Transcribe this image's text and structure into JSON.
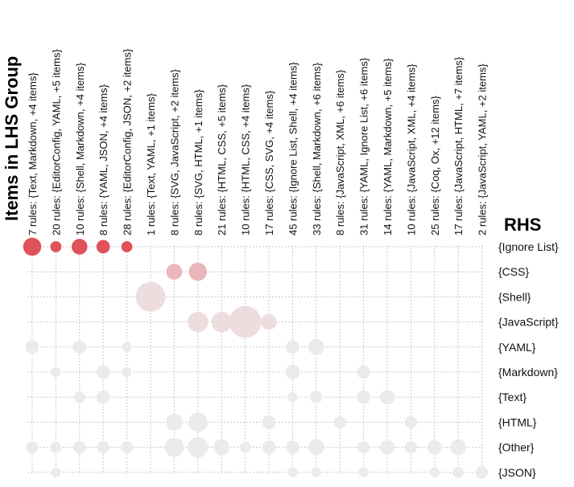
{
  "chart_data": {
    "type": "scatter",
    "title": "",
    "xlabel": "Items in LHS Group",
    "ylabel": "RHS",
    "columns": [
      "7 rules: {Text, Markdown, +4 items}",
      "20 rules: {EditorConfig, YAML, +5 items}",
      "10 rules: {Shell, Markdown, +4 items}",
      "8 rules: {YAML, JSON, +4 items}",
      "28 rules: {EditorConfig, JSON, +2 items}",
      "1 rules: {Text, YAML, +1 items}",
      "8 rules: {SVG, JavaScript, +2 items}",
      "8 rules: {SVG, HTML, +1 items}",
      "21 rules: {HTML, CSS, +5 items}",
      "10 rules: {HTML, CSS, +4 items}",
      "17 rules: {CSS, SVG, +4 items}",
      "45 rules: {Ignore List, Shell, +4 items}",
      "33 rules: {Shell, Markdown, +6 items}",
      "8 rules: {JavaScript, XML, +6 items}",
      "31 rules: {YAML, Ignore List, +6 items}",
      "14 rules: {YAML, Markdown, +5 items}",
      "10 rules: {JavaScript, XML, +4 items}",
      "25 rules: {Coq, Ox, +12 items}",
      "17 rules: {JavaScript, HTML, +7 items}",
      "2 rules: {JavaScript, YAML, +2 items}"
    ],
    "rows": [
      "{Ignore List}",
      "{CSS}",
      "{Shell}",
      "{JavaScript}",
      "{YAML}",
      "{Markdown}",
      "{Text}",
      "{HTML}",
      "{Other}",
      "{JSON}"
    ],
    "colors": {
      "strong": "#e05158",
      "medium": "#eab6b9",
      "light": "#eddddf",
      "faint": "#ebebeb"
    },
    "points": [
      {
        "col": 0,
        "row": 0,
        "size": 5,
        "shade": "strong"
      },
      {
        "col": 1,
        "row": 0,
        "size": 2,
        "shade": "strong"
      },
      {
        "col": 2,
        "row": 0,
        "size": 4,
        "shade": "strong"
      },
      {
        "col": 3,
        "row": 0,
        "size": 3,
        "shade": "strong"
      },
      {
        "col": 4,
        "row": 0,
        "size": 2,
        "shade": "strong"
      },
      {
        "col": 6,
        "row": 1,
        "size": 4,
        "shade": "medium"
      },
      {
        "col": 7,
        "row": 1,
        "size": 5,
        "shade": "medium"
      },
      {
        "col": 5,
        "row": 2,
        "size": 10,
        "shade": "light"
      },
      {
        "col": 7,
        "row": 3,
        "size": 6,
        "shade": "light"
      },
      {
        "col": 8,
        "row": 3,
        "size": 6,
        "shade": "light"
      },
      {
        "col": 9,
        "row": 3,
        "size": 11,
        "shade": "light"
      },
      {
        "col": 10,
        "row": 3,
        "size": 4,
        "shade": "light"
      },
      {
        "col": 0,
        "row": 4,
        "size": 3,
        "shade": "faint"
      },
      {
        "col": 2,
        "row": 4,
        "size": 3,
        "shade": "faint"
      },
      {
        "col": 4,
        "row": 4,
        "size": 1.5,
        "shade": "faint"
      },
      {
        "col": 11,
        "row": 4,
        "size": 3,
        "shade": "faint"
      },
      {
        "col": 12,
        "row": 4,
        "size": 4,
        "shade": "faint"
      },
      {
        "col": 1,
        "row": 5,
        "size": 1.5,
        "shade": "faint"
      },
      {
        "col": 3,
        "row": 5,
        "size": 3,
        "shade": "faint"
      },
      {
        "col": 4,
        "row": 5,
        "size": 1.5,
        "shade": "faint"
      },
      {
        "col": 11,
        "row": 5,
        "size": 3.5,
        "shade": "faint"
      },
      {
        "col": 14,
        "row": 5,
        "size": 3,
        "shade": "faint"
      },
      {
        "col": 2,
        "row": 6,
        "size": 2,
        "shade": "faint"
      },
      {
        "col": 3,
        "row": 6,
        "size": 3,
        "shade": "faint"
      },
      {
        "col": 11,
        "row": 6,
        "size": 1.5,
        "shade": "faint"
      },
      {
        "col": 12,
        "row": 6,
        "size": 2.5,
        "shade": "faint"
      },
      {
        "col": 14,
        "row": 6,
        "size": 3,
        "shade": "faint"
      },
      {
        "col": 15,
        "row": 6,
        "size": 3.5,
        "shade": "faint"
      },
      {
        "col": 6,
        "row": 7,
        "size": 4.5,
        "shade": "faint"
      },
      {
        "col": 7,
        "row": 7,
        "size": 5.5,
        "shade": "faint"
      },
      {
        "col": 10,
        "row": 7,
        "size": 3,
        "shade": "faint"
      },
      {
        "col": 13,
        "row": 7,
        "size": 2.5,
        "shade": "faint"
      },
      {
        "col": 16,
        "row": 7,
        "size": 2.5,
        "shade": "faint"
      },
      {
        "col": 0,
        "row": 8,
        "size": 2.5,
        "shade": "faint"
      },
      {
        "col": 1,
        "row": 8,
        "size": 2,
        "shade": "faint"
      },
      {
        "col": 2,
        "row": 8,
        "size": 2.5,
        "shade": "faint"
      },
      {
        "col": 3,
        "row": 8,
        "size": 2.5,
        "shade": "faint"
      },
      {
        "col": 4,
        "row": 8,
        "size": 2.5,
        "shade": "faint"
      },
      {
        "col": 6,
        "row": 8,
        "size": 5.5,
        "shade": "faint"
      },
      {
        "col": 7,
        "row": 8,
        "size": 6,
        "shade": "faint"
      },
      {
        "col": 8,
        "row": 8,
        "size": 4,
        "shade": "faint"
      },
      {
        "col": 9,
        "row": 8,
        "size": 2,
        "shade": "faint"
      },
      {
        "col": 10,
        "row": 8,
        "size": 3,
        "shade": "faint"
      },
      {
        "col": 11,
        "row": 8,
        "size": 3,
        "shade": "faint"
      },
      {
        "col": 12,
        "row": 8,
        "size": 4,
        "shade": "faint"
      },
      {
        "col": 14,
        "row": 8,
        "size": 2.5,
        "shade": "faint"
      },
      {
        "col": 15,
        "row": 8,
        "size": 3.5,
        "shade": "faint"
      },
      {
        "col": 16,
        "row": 8,
        "size": 2.5,
        "shade": "faint"
      },
      {
        "col": 17,
        "row": 8,
        "size": 3.5,
        "shade": "faint"
      },
      {
        "col": 18,
        "row": 8,
        "size": 4,
        "shade": "faint"
      },
      {
        "col": 1,
        "row": 9,
        "size": 1.5,
        "shade": "faint"
      },
      {
        "col": 11,
        "row": 9,
        "size": 1.5,
        "shade": "faint"
      },
      {
        "col": 12,
        "row": 9,
        "size": 1.5,
        "shade": "faint"
      },
      {
        "col": 14,
        "row": 9,
        "size": 1.5,
        "shade": "faint"
      },
      {
        "col": 17,
        "row": 9,
        "size": 1.5,
        "shade": "faint"
      },
      {
        "col": 18,
        "row": 9,
        "size": 2,
        "shade": "faint"
      },
      {
        "col": 19,
        "row": 9,
        "size": 2.5,
        "shade": "faint"
      }
    ],
    "grid": true
  }
}
